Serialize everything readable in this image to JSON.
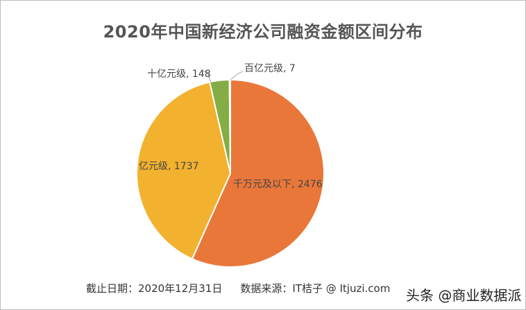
{
  "chart_data": {
    "type": "pie",
    "title": "2020年中国新经济公司融资金额区间分布",
    "start_angle_deg": 0,
    "direction": "clockwise",
    "slices": [
      {
        "label": "千万元及以下",
        "value": 2476,
        "color": "#E9773A",
        "label_text": "千万元及以下, 2476"
      },
      {
        "label": "亿元级",
        "value": 1737,
        "color": "#F2B12E",
        "label_text": "亿元级, 1737"
      },
      {
        "label": "十亿元级",
        "value": 148,
        "color": "#84AD45",
        "label_text": "十亿元级, 148"
      },
      {
        "label": "百亿元级",
        "value": 7,
        "color": "#5B9BD5",
        "label_text": "百亿元级, 7"
      }
    ],
    "legend": "none",
    "data_labels": "category, value"
  },
  "footer": {
    "date": "截止日期：2020年12月31日",
    "source": "数据来源：IT桔子 @ Itjuzi.com"
  },
  "watermark": "头条 @商业数据派"
}
